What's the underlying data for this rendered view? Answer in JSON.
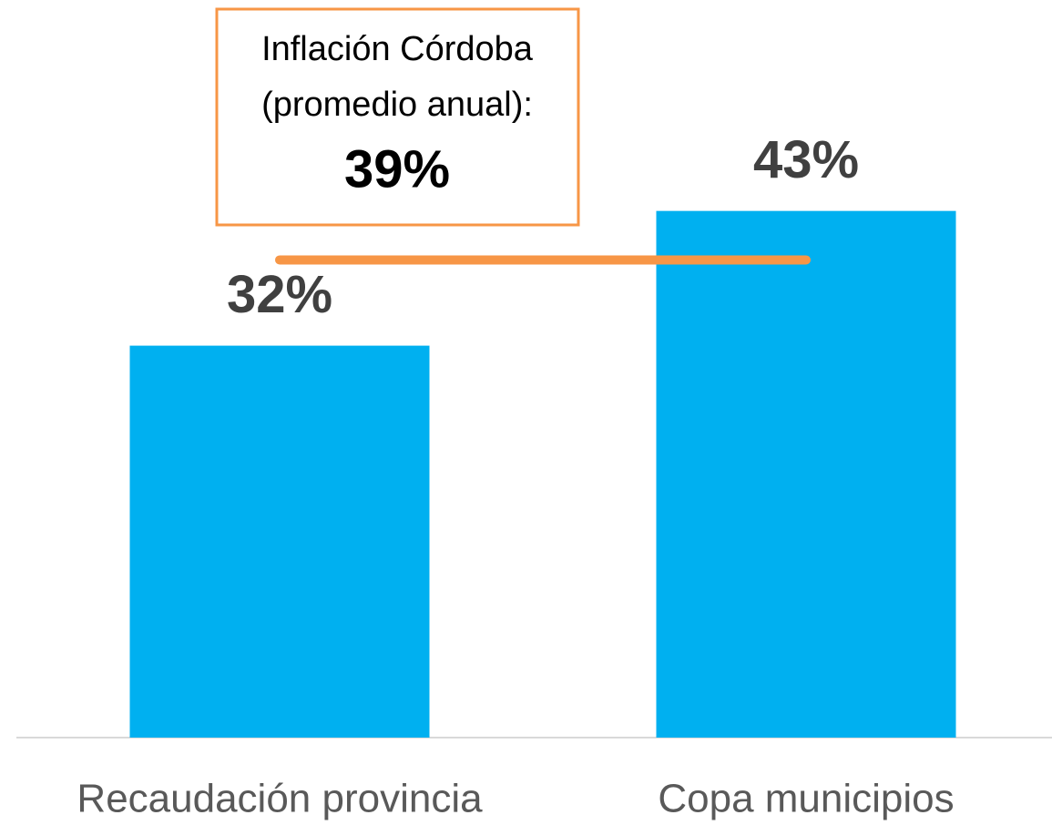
{
  "chart_data": {
    "type": "bar",
    "categories": [
      "Recaudación provincia",
      "Copa municipios"
    ],
    "values": [
      32,
      43
    ],
    "value_labels": [
      "32%",
      "43%"
    ],
    "color": "#00b0f0",
    "ylim": [
      0,
      60
    ],
    "reference": {
      "value": 39,
      "label": "39%",
      "text": [
        "Inflación Córdoba",
        "(promedio anual):"
      ],
      "color": "#f79646"
    }
  }
}
